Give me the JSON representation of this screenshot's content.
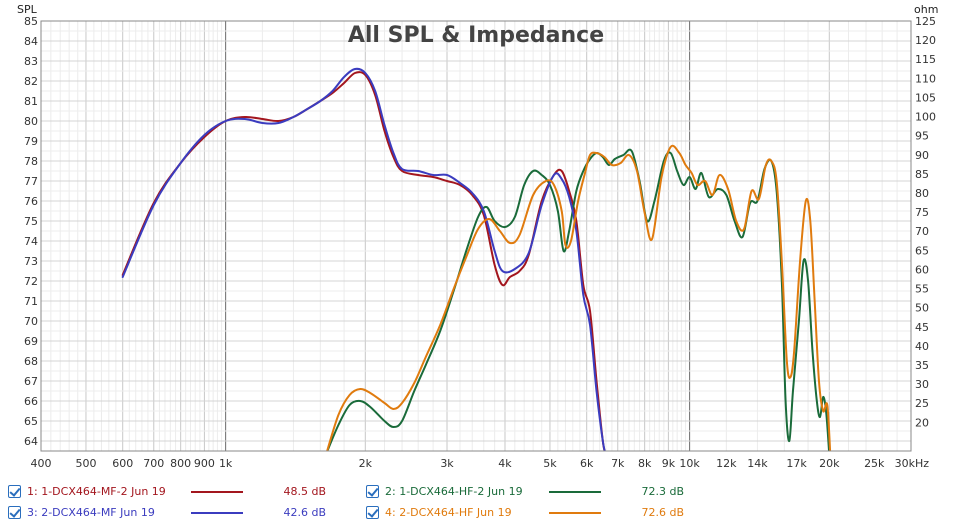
{
  "chart_data": {
    "type": "line",
    "title": "All SPL & Impedance",
    "ylabel": "SPL",
    "y2label": "ohm",
    "xunit": "Hz",
    "xscale": "log",
    "xlim": [
      400,
      30000
    ],
    "ylim": [
      63.5,
      85
    ],
    "y2lim": [
      12.5,
      125
    ],
    "grid": true,
    "legend_position": "bottom",
    "x_tick_labels": [
      {
        "x": 400,
        "label": "400"
      },
      {
        "x": 500,
        "label": "500"
      },
      {
        "x": 600,
        "label": "600"
      },
      {
        "x": 700,
        "label": "700"
      },
      {
        "x": 800,
        "label": "800"
      },
      {
        "x": 900,
        "label": "900"
      },
      {
        "x": 1000,
        "label": "1k"
      },
      {
        "x": 2000,
        "label": "2k"
      },
      {
        "x": 3000,
        "label": "3k"
      },
      {
        "x": 4000,
        "label": "4k"
      },
      {
        "x": 5000,
        "label": "5k"
      },
      {
        "x": 6000,
        "label": "6k"
      },
      {
        "x": 7000,
        "label": "7k"
      },
      {
        "x": 8000,
        "label": "8k"
      },
      {
        "x": 9000,
        "label": "9k"
      },
      {
        "x": 10000,
        "label": "10k"
      },
      {
        "x": 12000,
        "label": "12k"
      },
      {
        "x": 14000,
        "label": "14k"
      },
      {
        "x": 17000,
        "label": "17k"
      },
      {
        "x": 20000,
        "label": "20k"
      },
      {
        "x": 25000,
        "label": "25k"
      },
      {
        "x": 30000,
        "label": "30kHz"
      }
    ],
    "y_ticks": [
      64,
      65,
      66,
      67,
      68,
      69,
      70,
      71,
      72,
      73,
      74,
      75,
      76,
      77,
      78,
      79,
      80,
      81,
      82,
      83,
      84,
      85
    ],
    "y2_ticks": [
      20,
      25,
      30,
      35,
      40,
      45,
      50,
      55,
      60,
      65,
      70,
      75,
      80,
      85,
      90,
      95,
      100,
      105,
      110,
      115,
      120,
      125
    ],
    "series": [
      {
        "name": "1: 1-DCX464-MF-2 Jun 19",
        "value_label": "48.5 dB",
        "color": "#a3161e",
        "points": [
          [
            600,
            72.3
          ],
          [
            700,
            75.9
          ],
          [
            800,
            77.9
          ],
          [
            900,
            79.2
          ],
          [
            1000,
            80.0
          ],
          [
            1100,
            80.2
          ],
          [
            1200,
            80.1
          ],
          [
            1300,
            80.0
          ],
          [
            1400,
            80.2
          ],
          [
            1500,
            80.6
          ],
          [
            1600,
            81.0
          ],
          [
            1700,
            81.4
          ],
          [
            1800,
            81.9
          ],
          [
            1900,
            82.4
          ],
          [
            2000,
            82.3
          ],
          [
            2100,
            81.3
          ],
          [
            2200,
            79.5
          ],
          [
            2300,
            78.2
          ],
          [
            2400,
            77.5
          ],
          [
            2600,
            77.3
          ],
          [
            2800,
            77.2
          ],
          [
            3000,
            77.0
          ],
          [
            3200,
            76.8
          ],
          [
            3400,
            76.3
          ],
          [
            3600,
            75.3
          ],
          [
            3800,
            72.8
          ],
          [
            3950,
            71.8
          ],
          [
            4100,
            72.2
          ],
          [
            4300,
            72.5
          ],
          [
            4500,
            73.3
          ],
          [
            4800,
            76.0
          ],
          [
            5100,
            77.3
          ],
          [
            5300,
            77.5
          ],
          [
            5500,
            76.5
          ],
          [
            5700,
            75.0
          ],
          [
            5900,
            71.8
          ],
          [
            6100,
            70.5
          ],
          [
            6300,
            67.0
          ],
          [
            6500,
            64.0
          ],
          [
            6600,
            63.3
          ]
        ]
      },
      {
        "name": "2: 1-DCX464-HF-2 Jun 19",
        "value_label": "72.3 dB",
        "color": "#1a6b3a",
        "points": [
          [
            1650,
            63.4
          ],
          [
            1750,
            64.8
          ],
          [
            1850,
            65.8
          ],
          [
            1950,
            66.0
          ],
          [
            2050,
            65.7
          ],
          [
            2200,
            65.0
          ],
          [
            2300,
            64.7
          ],
          [
            2400,
            65.0
          ],
          [
            2550,
            66.5
          ],
          [
            2700,
            67.8
          ],
          [
            2900,
            69.5
          ],
          [
            3100,
            71.5
          ],
          [
            3300,
            73.5
          ],
          [
            3500,
            75.2
          ],
          [
            3650,
            75.7
          ],
          [
            3800,
            75.0
          ],
          [
            4000,
            74.7
          ],
          [
            4200,
            75.2
          ],
          [
            4400,
            76.8
          ],
          [
            4600,
            77.5
          ],
          [
            4800,
            77.3
          ],
          [
            5000,
            76.8
          ],
          [
            5200,
            75.5
          ],
          [
            5350,
            73.5
          ],
          [
            5500,
            74.5
          ],
          [
            5700,
            76.5
          ],
          [
            5900,
            77.5
          ],
          [
            6100,
            78.1
          ],
          [
            6300,
            78.4
          ],
          [
            6500,
            78.2
          ],
          [
            6700,
            77.8
          ],
          [
            6900,
            78.1
          ],
          [
            7200,
            78.3
          ],
          [
            7500,
            78.5
          ],
          [
            7800,
            77.0
          ],
          [
            8100,
            75.0
          ],
          [
            8400,
            76.0
          ],
          [
            8800,
            78.0
          ],
          [
            9100,
            78.4
          ],
          [
            9400,
            77.5
          ],
          [
            9700,
            76.8
          ],
          [
            10000,
            77.2
          ],
          [
            10300,
            76.6
          ],
          [
            10600,
            77.4
          ],
          [
            11000,
            76.2
          ],
          [
            11500,
            76.6
          ],
          [
            12000,
            76.3
          ],
          [
            12500,
            75.0
          ],
          [
            13000,
            74.2
          ],
          [
            13500,
            75.9
          ],
          [
            14000,
            76.0
          ],
          [
            14500,
            77.6
          ],
          [
            15000,
            78.0
          ],
          [
            15400,
            76.5
          ],
          [
            15800,
            72.0
          ],
          [
            16100,
            66.0
          ],
          [
            16400,
            64.0
          ],
          [
            16700,
            66.5
          ],
          [
            17200,
            70.0
          ],
          [
            17600,
            73.0
          ],
          [
            18000,
            72.0
          ],
          [
            18400,
            68.5
          ],
          [
            18800,
            66.0
          ],
          [
            19100,
            65.2
          ],
          [
            19400,
            66.2
          ],
          [
            19700,
            65.4
          ],
          [
            20000,
            63.3
          ]
        ]
      },
      {
        "name": "3: 2-DCX464-MF Jun 19",
        "value_label": "42.6 dB",
        "color": "#3b3cbf",
        "points": [
          [
            600,
            72.2
          ],
          [
            700,
            75.8
          ],
          [
            800,
            77.9
          ],
          [
            900,
            79.3
          ],
          [
            1000,
            80.0
          ],
          [
            1100,
            80.1
          ],
          [
            1200,
            79.9
          ],
          [
            1300,
            79.9
          ],
          [
            1400,
            80.2
          ],
          [
            1500,
            80.6
          ],
          [
            1600,
            81.0
          ],
          [
            1700,
            81.5
          ],
          [
            1800,
            82.2
          ],
          [
            1900,
            82.6
          ],
          [
            2000,
            82.4
          ],
          [
            2100,
            81.5
          ],
          [
            2200,
            79.8
          ],
          [
            2300,
            78.4
          ],
          [
            2400,
            77.6
          ],
          [
            2600,
            77.5
          ],
          [
            2800,
            77.3
          ],
          [
            3000,
            77.3
          ],
          [
            3200,
            76.9
          ],
          [
            3400,
            76.4
          ],
          [
            3600,
            75.5
          ],
          [
            3800,
            73.5
          ],
          [
            3950,
            72.5
          ],
          [
            4200,
            72.6
          ],
          [
            4500,
            73.4
          ],
          [
            4800,
            75.8
          ],
          [
            5100,
            77.3
          ],
          [
            5300,
            77.1
          ],
          [
            5500,
            76.2
          ],
          [
            5700,
            74.5
          ],
          [
            5900,
            71.3
          ],
          [
            6100,
            69.8
          ],
          [
            6300,
            66.5
          ],
          [
            6500,
            64.0
          ],
          [
            6600,
            63.3
          ]
        ]
      },
      {
        "name": "4: 2-DCX464-HF Jun 19",
        "value_label": "72.6 dB",
        "color": "#e07b0e",
        "points": [
          [
            1650,
            63.4
          ],
          [
            1750,
            65.3
          ],
          [
            1850,
            66.3
          ],
          [
            1950,
            66.6
          ],
          [
            2050,
            66.4
          ],
          [
            2200,
            65.9
          ],
          [
            2300,
            65.6
          ],
          [
            2400,
            65.9
          ],
          [
            2550,
            66.9
          ],
          [
            2700,
            68.2
          ],
          [
            2900,
            69.8
          ],
          [
            3100,
            71.6
          ],
          [
            3300,
            73.2
          ],
          [
            3500,
            74.6
          ],
          [
            3700,
            75.1
          ],
          [
            3900,
            74.5
          ],
          [
            4100,
            73.9
          ],
          [
            4300,
            74.3
          ],
          [
            4600,
            76.3
          ],
          [
            4900,
            77.0
          ],
          [
            5100,
            76.8
          ],
          [
            5300,
            75.5
          ],
          [
            5400,
            73.8
          ],
          [
            5550,
            74.0
          ],
          [
            5750,
            76.0
          ],
          [
            5950,
            77.4
          ],
          [
            6100,
            78.3
          ],
          [
            6300,
            78.4
          ],
          [
            6550,
            78.2
          ],
          [
            6800,
            77.8
          ],
          [
            7100,
            77.9
          ],
          [
            7400,
            78.3
          ],
          [
            7700,
            77.5
          ],
          [
            8000,
            75.4
          ],
          [
            8300,
            74.1
          ],
          [
            8700,
            77.2
          ],
          [
            9100,
            78.7
          ],
          [
            9500,
            78.4
          ],
          [
            9800,
            77.8
          ],
          [
            10100,
            77.4
          ],
          [
            10400,
            76.8
          ],
          [
            10800,
            77.0
          ],
          [
            11200,
            76.3
          ],
          [
            11600,
            77.3
          ],
          [
            12100,
            76.6
          ],
          [
            12600,
            75.0
          ],
          [
            13100,
            74.6
          ],
          [
            13600,
            76.5
          ],
          [
            14100,
            76.1
          ],
          [
            14600,
            77.8
          ],
          [
            15000,
            78.0
          ],
          [
            15400,
            77.0
          ],
          [
            15800,
            73.0
          ],
          [
            16200,
            68.0
          ],
          [
            16500,
            67.2
          ],
          [
            16800,
            68.5
          ],
          [
            17300,
            73.0
          ],
          [
            17800,
            76.0
          ],
          [
            18200,
            75.0
          ],
          [
            18600,
            71.0
          ],
          [
            19000,
            67.0
          ],
          [
            19400,
            65.5
          ],
          [
            19800,
            65.8
          ],
          [
            20100,
            63.3
          ]
        ]
      }
    ]
  }
}
